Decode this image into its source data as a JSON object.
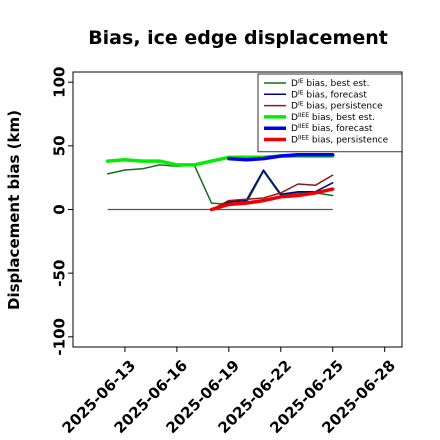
{
  "chart_data": {
    "type": "line",
    "title": "Bias, ice edge displacement",
    "ylabel": "Displacement bias (km)",
    "xlabel": "",
    "ylim": [
      -108,
      108
    ],
    "xlim": [
      "2025-06-10",
      "2025-06-29"
    ],
    "grid": false,
    "legend_position": "top-right",
    "x_ticks": [
      "2025-06-13",
      "2025-06-16",
      "2025-06-19",
      "2025-06-22",
      "2025-06-25",
      "2025-06-28"
    ],
    "highlight_tick": "2025-06-19",
    "highlight_color": "#228b22",
    "y_ticks": [
      -100,
      -50,
      0,
      50,
      100
    ],
    "zero_line_color": "#555555",
    "series": [
      {
        "name": "D$^{IE}$ bias, best est.",
        "legend_main": "D",
        "legend_sup": "IE",
        "legend_rest": " bias, best est.",
        "color": "#1a6b1a",
        "width": 1.5,
        "x": [
          "2025-06-12",
          "2025-06-13",
          "2025-06-14",
          "2025-06-15",
          "2025-06-16",
          "2025-06-17",
          "2025-06-18",
          "2025-06-19",
          "2025-06-20",
          "2025-06-21",
          "2025-06-22",
          "2025-06-23",
          "2025-06-24",
          "2025-06-25"
        ],
        "values": [
          28,
          31,
          32,
          35,
          34,
          35,
          5,
          4,
          5,
          30,
          11,
          13,
          13,
          11
        ]
      },
      {
        "name": "D$^{IE}$ bias, forecast",
        "legend_main": "D",
        "legend_sup": "IE",
        "legend_rest": " bias, forecast",
        "color": "#00008b",
        "width": 1.5,
        "x": [
          "2025-06-18",
          "2025-06-19",
          "2025-06-20",
          "2025-06-21",
          "2025-06-22",
          "2025-06-23",
          "2025-06-24",
          "2025-06-25"
        ],
        "values": [
          0,
          6,
          7,
          31,
          12,
          14,
          14,
          21
        ]
      },
      {
        "name": "D$^{IE}$ bias, persistence",
        "legend_main": "D",
        "legend_sup": "IE",
        "legend_rest": " bias, persistence",
        "color": "#8b1a1a",
        "width": 1.5,
        "x": [
          "2025-06-18",
          "2025-06-19",
          "2025-06-20",
          "2025-06-21",
          "2025-06-22",
          "2025-06-23",
          "2025-06-24",
          "2025-06-25"
        ],
        "values": [
          0,
          7,
          8,
          9,
          13,
          20,
          19,
          27
        ]
      },
      {
        "name": "D$^{IIEE}$ bias, best est.",
        "legend_main": "D",
        "legend_sup": "IIEE",
        "legend_rest": " bias, best est.",
        "color": "#00ee00",
        "width": 3.5,
        "x": [
          "2025-06-12",
          "2025-06-13",
          "2025-06-14",
          "2025-06-15",
          "2025-06-16",
          "2025-06-17",
          "2025-06-18",
          "2025-06-19",
          "2025-06-20",
          "2025-06-21",
          "2025-06-22",
          "2025-06-23",
          "2025-06-24",
          "2025-06-25"
        ],
        "values": [
          38,
          39,
          38,
          38,
          35,
          35,
          38,
          41,
          41,
          41,
          42,
          42,
          42,
          42
        ]
      },
      {
        "name": "D$^{IIEE}$ bias, forecast",
        "legend_main": "D",
        "legend_sup": "IIEE",
        "legend_rest": " bias, forecast",
        "color": "#0000ee",
        "width": 3.5,
        "x": [
          "2025-06-19",
          "2025-06-20",
          "2025-06-21",
          "2025-06-22",
          "2025-06-23",
          "2025-06-24",
          "2025-06-25"
        ],
        "values": [
          40,
          39,
          40,
          42,
          43,
          43,
          43
        ]
      },
      {
        "name": "D$^{IIEE}$ bias, persistence",
        "legend_main": "D",
        "legend_sup": "IIEE",
        "legend_rest": " bias, persistence",
        "color": "#ee0000",
        "width": 3.5,
        "x": [
          "2025-06-18",
          "2025-06-19",
          "2025-06-20",
          "2025-06-21",
          "2025-06-22",
          "2025-06-23",
          "2025-06-24",
          "2025-06-25"
        ],
        "values": [
          0,
          4,
          5,
          7,
          10,
          11,
          13,
          16
        ]
      }
    ]
  }
}
